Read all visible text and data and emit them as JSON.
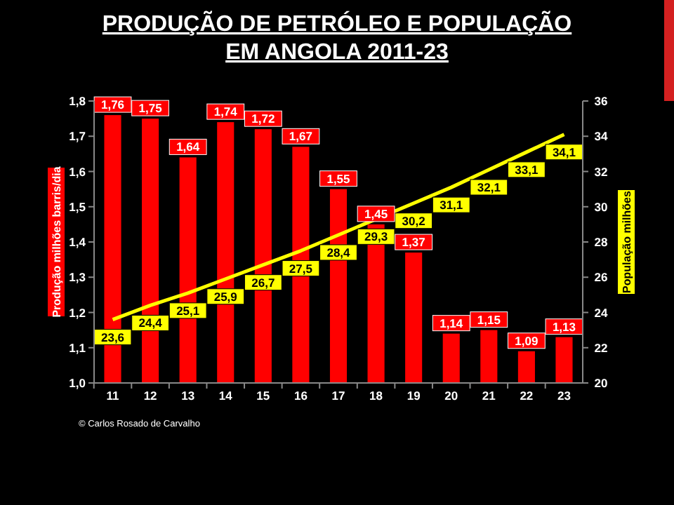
{
  "chart_data": {
    "type": "bar",
    "title": "PRODUÇÃO DE PETRÓLEO E POPULAÇÃO\nEM ANGOLA  2011-23",
    "ylabel": "Produção milhões barris/dia",
    "y2label": "População milhões",
    "annotations": [
      "© Carlos Rosado de Carvalho"
    ],
    "categories": [
      "11",
      "12",
      "13",
      "14",
      "15",
      "16",
      "17",
      "18",
      "19",
      "20",
      "21",
      "22",
      "23"
    ],
    "series": [
      {
        "color": "#ff0000",
        "values": [
          1.76,
          1.75,
          1.64,
          1.74,
          1.72,
          1.67,
          1.55,
          1.45,
          1.37,
          1.14,
          1.15,
          1.09,
          1.13
        ],
        "value_labels": [
          "1,76",
          "1,75",
          "1,64",
          "1,74",
          "1,72",
          "1,67",
          "1,55",
          "1,45",
          "1,37",
          "1,14",
          "1,15",
          "1,09",
          "1,13"
        ]
      },
      {
        "type": "line",
        "axis": "y2",
        "color": "#ffff00",
        "values": [
          23.6,
          24.4,
          25.1,
          25.9,
          26.7,
          27.5,
          28.4,
          29.3,
          30.2,
          31.1,
          32.1,
          33.1,
          34.1
        ],
        "value_labels": [
          "23,6",
          "24,4",
          "25,1",
          "25,9",
          "26,7",
          "27,5",
          "28,4",
          "29,3",
          "30,2",
          "31,1",
          "32,1",
          "33,1",
          "34,1"
        ]
      }
    ],
    "ylim": [
      1.0,
      1.8
    ],
    "yticks": [
      {
        "value": 1.0,
        "label": "1,0"
      },
      {
        "value": 1.1,
        "label": "1,1"
      },
      {
        "value": 1.2,
        "label": "1,2"
      },
      {
        "value": 1.3,
        "label": "1,3"
      },
      {
        "value": 1.4,
        "label": "1,4"
      },
      {
        "value": 1.5,
        "label": "1,5"
      },
      {
        "value": 1.6,
        "label": "1,6"
      },
      {
        "value": 1.7,
        "label": "1,7"
      },
      {
        "value": 1.8,
        "label": "1,8"
      }
    ],
    "y2lim": [
      20,
      36
    ],
    "y2ticks": [
      20,
      22,
      24,
      26,
      28,
      30,
      32,
      34,
      36
    ],
    "grid": false
  }
}
